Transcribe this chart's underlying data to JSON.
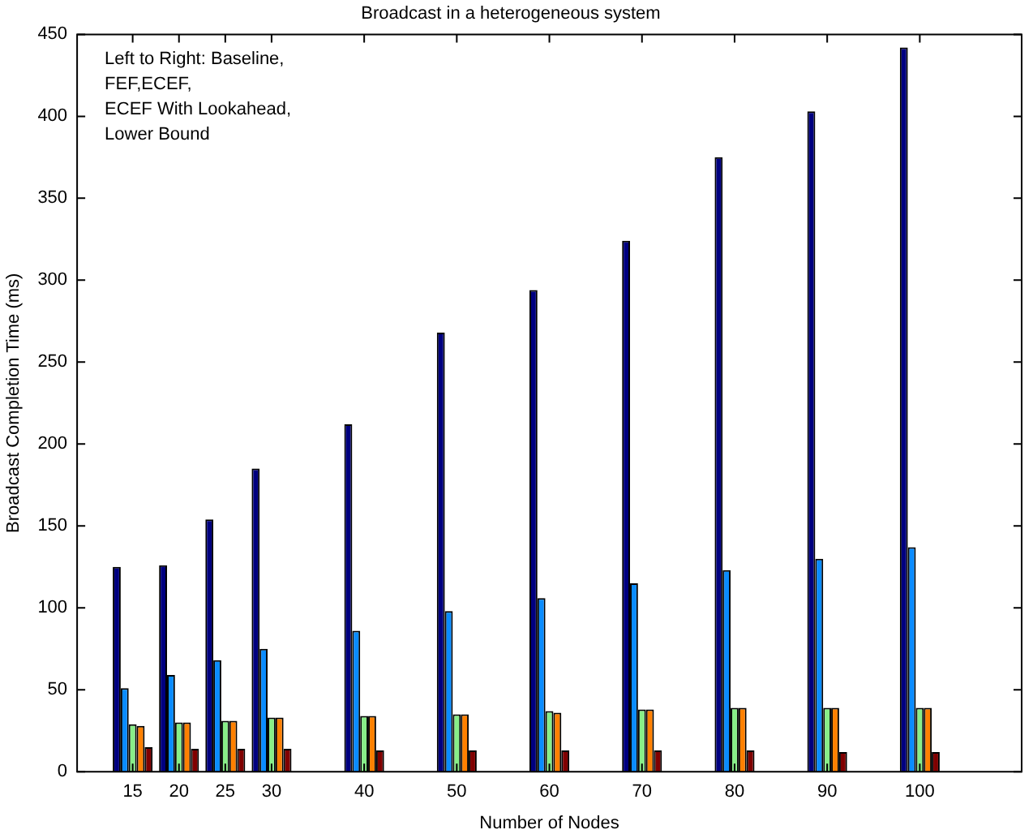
{
  "chart_data": {
    "type": "bar",
    "title": "Broadcast in a heterogeneous system",
    "xlabel": "Number of Nodes",
    "ylabel": "Broadcast Completion Time (ms)",
    "x": [
      15,
      20,
      25,
      30,
      40,
      50,
      60,
      70,
      80,
      90,
      100
    ],
    "series": [
      {
        "color": "#000080",
        "values": [
          125,
          126,
          154,
          185,
          212,
          268,
          294,
          324,
          375,
          403,
          442
        ]
      },
      {
        "color": "#0a8cff",
        "values": [
          51,
          59,
          68,
          75,
          86,
          98,
          106,
          115,
          123,
          130,
          137
        ]
      },
      {
        "color": "#88ee88",
        "values": [
          29,
          30,
          31,
          33,
          34,
          35,
          37,
          38,
          39,
          39,
          39
        ]
      },
      {
        "color": "#ff8000",
        "values": [
          28,
          30,
          31,
          33,
          34,
          35,
          36,
          38,
          39,
          39,
          39
        ]
      },
      {
        "color": "#800000",
        "values": [
          15,
          14,
          14,
          14,
          13,
          13,
          13,
          13,
          13,
          12,
          12
        ]
      }
    ],
    "xlim": [
      9,
      111
    ],
    "xticks": [
      15,
      20,
      25,
      30,
      40,
      50,
      60,
      70,
      80,
      90,
      100
    ],
    "ylim": [
      0,
      450
    ],
    "yticks": [
      0,
      50,
      100,
      150,
      200,
      250,
      300,
      350,
      400,
      450
    ],
    "grid": false,
    "legend": false,
    "annotations": [
      "Left to Right: Baseline,\nFEF,ECEF,\nECEF With Lookahead,\nLower Bound"
    ]
  }
}
